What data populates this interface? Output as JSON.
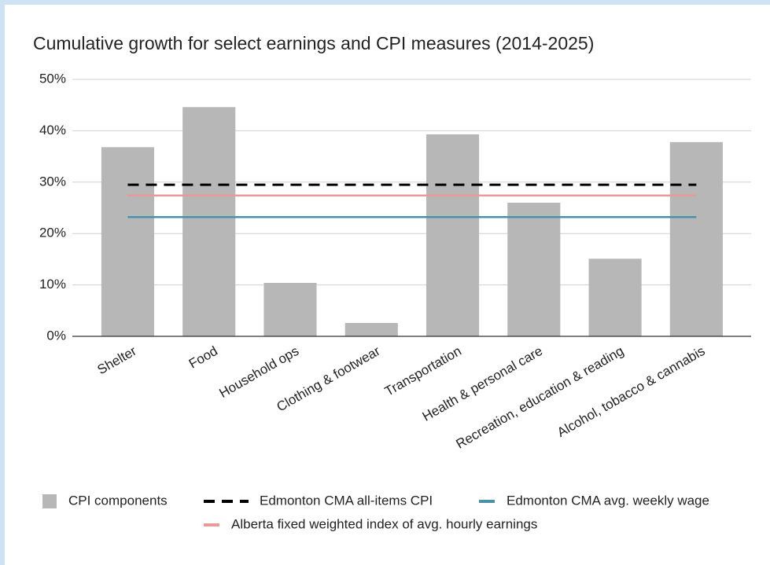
{
  "chart_data": {
    "type": "bar",
    "title": "Cumulative growth for select earnings and CPI measures (2014-2025)",
    "categories": [
      "Shelter",
      "Food",
      "Household ops",
      "Clothing & footwear",
      "Transportation",
      "Health & personal care",
      "Recreation, education & reading",
      "Alcohol, tobacco & cannabis"
    ],
    "series": [
      {
        "name": "CPI components",
        "type": "bar",
        "color": "#b7b7b7",
        "values": [
          36.8,
          44.6,
          10.4,
          2.6,
          39.3,
          26.0,
          15.1,
          37.8
        ]
      },
      {
        "name": "Edmonton CMA all-items CPI",
        "type": "line",
        "dash": true,
        "color": "#000000",
        "values": [
          29.5,
          29.5,
          29.5,
          29.5,
          29.5,
          29.5,
          29.5,
          29.5
        ]
      },
      {
        "name": "Edmonton CMA avg. weekly wage",
        "type": "line",
        "dash": false,
        "color": "#4a90a8",
        "values": [
          23.2,
          23.2,
          23.2,
          23.2,
          23.2,
          23.2,
          23.2,
          23.2
        ]
      },
      {
        "name": "Alberta fixed weighted index of avg. hourly earnings",
        "type": "line",
        "dash": false,
        "color": "#ea9999",
        "values": [
          27.4,
          27.4,
          27.4,
          27.4,
          27.4,
          27.4,
          27.4,
          27.4
        ]
      }
    ],
    "ylim": [
      0,
      50
    ],
    "yticks": [
      {
        "value": 0,
        "label": "0%"
      },
      {
        "value": 10,
        "label": "10%"
      },
      {
        "value": 20,
        "label": "20%"
      },
      {
        "value": 30,
        "label": "30%"
      },
      {
        "value": 40,
        "label": "40%"
      },
      {
        "value": 50,
        "label": "50%"
      }
    ],
    "grid": true,
    "legend": "bottom"
  }
}
